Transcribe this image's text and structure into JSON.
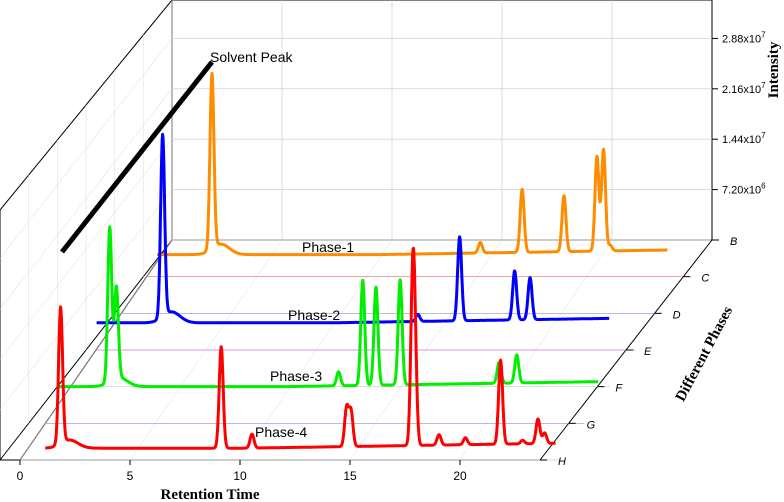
{
  "chart_data": {
    "type": "line",
    "title": "",
    "xlabel": "Retention Time",
    "ylabel": "Different Phases",
    "zlabel": "Intensity",
    "xlim": [
      0,
      25
    ],
    "x_ticks": [
      "0",
      "5",
      "10",
      "15",
      "20"
    ],
    "z_ticks": [
      {
        "base": "7.20x10",
        "exp": "6"
      },
      {
        "base": "1.44x10",
        "exp": "7"
      },
      {
        "base": "2.16x10",
        "exp": "7"
      },
      {
        "base": "2.88x10",
        "exp": "7"
      }
    ],
    "depth_ticks": [
      "B",
      "C",
      "D",
      "E",
      "F",
      "G",
      "H"
    ],
    "annotation": "Solvent Peak",
    "series": [
      {
        "name": "Phase-1",
        "color": "#FF8C00",
        "peaks": [
          {
            "x": 2.3,
            "y": 25000000.0
          },
          {
            "x": 14.5,
            "y": 1500000.0
          },
          {
            "x": 16.4,
            "y": 9000000.0
          },
          {
            "x": 18.3,
            "y": 8000000.0
          },
          {
            "x": 19.8,
            "y": 13500000.0
          },
          {
            "x": 20.1,
            "y": 14500000.0
          },
          {
            "x": 20.4,
            "y": 800000.0
          }
        ]
      },
      {
        "name": "Phase-2",
        "color": "#0000FF",
        "peaks": [
          {
            "x": 2.2,
            "y": 26000000.0
          },
          {
            "x": 13.8,
            "y": 1000000.0
          },
          {
            "x": 15.7,
            "y": 12000000.0
          },
          {
            "x": 18.2,
            "y": 7000000.0
          },
          {
            "x": 18.9,
            "y": 6000000.0
          }
        ]
      },
      {
        "name": "Phase-3",
        "color": "#00EE00",
        "peaks": [
          {
            "x": 1.8,
            "y": 22000000.0
          },
          {
            "x": 2.1,
            "y": 13000000.0
          },
          {
            "x": 12.2,
            "y": 2000000.0
          },
          {
            "x": 13.3,
            "y": 15000000.0
          },
          {
            "x": 13.9,
            "y": 14000000.0
          },
          {
            "x": 15.0,
            "y": 15000000.0
          },
          {
            "x": 19.5,
            "y": 3000000.0
          },
          {
            "x": 20.3,
            "y": 4000000.0
          }
        ]
      },
      {
        "name": "Phase-4",
        "color": "#FF0000",
        "peaks": [
          {
            "x": 1.5,
            "y": 19500000.0
          },
          {
            "x": 8.8,
            "y": 14500000.0
          },
          {
            "x": 10.2,
            "y": 2000000.0
          },
          {
            "x": 14.5,
            "y": 5500000.0
          },
          {
            "x": 14.7,
            "y": 5000000.0
          },
          {
            "x": 17.5,
            "y": 20500000.0
          },
          {
            "x": 17.6,
            "y": 12000000.0
          },
          {
            "x": 18.7,
            "y": 1500000.0
          },
          {
            "x": 19.9,
            "y": 1000000.0
          },
          {
            "x": 21.5,
            "y": 12000000.0
          },
          {
            "x": 22.5,
            "y": 500000.0
          },
          {
            "x": 23.2,
            "y": 3500000.0
          },
          {
            "x": 23.5,
            "y": 1500000.0
          }
        ]
      }
    ]
  }
}
